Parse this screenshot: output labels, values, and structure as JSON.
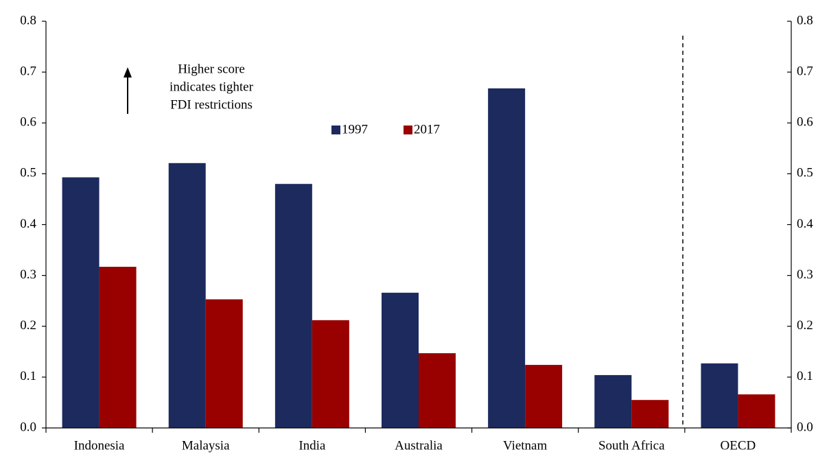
{
  "chart_data": {
    "type": "bar",
    "categories": [
      "Indonesia",
      "Malaysia",
      "India",
      "Australia",
      "Vietnam",
      "South Africa",
      "OECD"
    ],
    "series": [
      {
        "name": "1997",
        "color": "#1c2a5e",
        "values": [
          0.493,
          0.521,
          0.48,
          0.266,
          0.668,
          0.104,
          0.127
        ]
      },
      {
        "name": "2017",
        "color": "#990000",
        "values": [
          0.317,
          0.253,
          0.212,
          0.147,
          0.124,
          0.055,
          0.066
        ]
      }
    ],
    "ylim": [
      0,
      0.8
    ],
    "yticks": [
      {
        "value": 0,
        "label": "0.0"
      },
      0.1,
      0.2,
      0.3,
      0.4,
      0.5,
      0.6,
      0.7,
      0.8
    ],
    "y2lim": [
      0,
      0.8
    ],
    "y2ticks": [
      {
        "value": 0,
        "label": "0.0"
      },
      0.1,
      0.2,
      0.3,
      0.4,
      0.5,
      0.6,
      0.7,
      0.8
    ],
    "annotation": [
      "Higher score",
      "indicates tighter",
      "FDI restrictions"
    ]
  }
}
